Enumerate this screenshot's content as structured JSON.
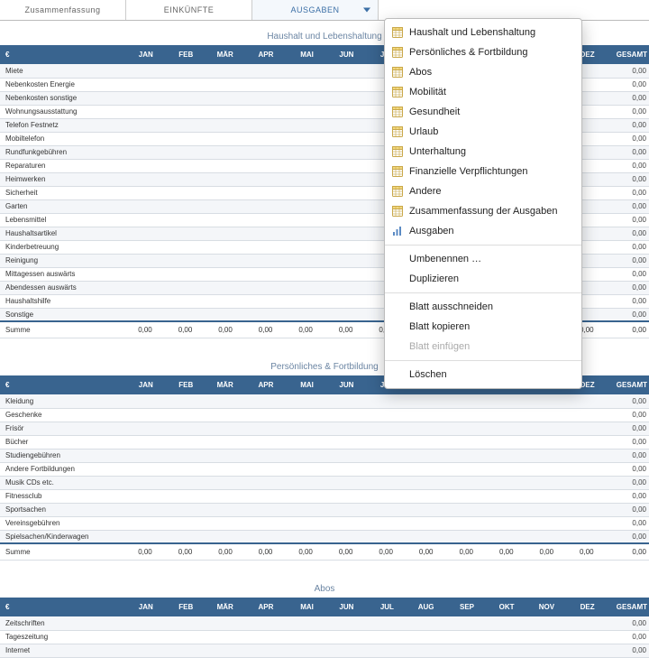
{
  "colors": {
    "header_bg": "#39648f",
    "header_fg": "#ffffff",
    "row_alt_bg": "#f4f6f9",
    "row_bg": "#ffffff",
    "border": "#d8dde3",
    "accent": "#3b6fa6",
    "title_fg": "#6b85a3"
  },
  "tabs": {
    "summary": "Zusammenfassung",
    "income": "EINKÜNFTE",
    "expenses": "AUSGABEN"
  },
  "currency_symbol": "€",
  "months": [
    "JAN",
    "FEB",
    "MÄR",
    "APR",
    "MAI",
    "JUN",
    "JUL",
    "AUG",
    "SEP",
    "OKT",
    "NOV",
    "DEZ"
  ],
  "total_label": "GESAMT",
  "sum_label": "Summe",
  "zero": "0,00",
  "sections": [
    {
      "title": "Haushalt und Lebenshaltung",
      "rows": [
        "Miete",
        "Nebenkosten Energie",
        "Nebenkosten sonstige",
        "Wohnungsausstattung",
        "Telefon Festnetz",
        "Mobiltelefon",
        "Rundfunkgebühren",
        "Reparaturen",
        "Heimwerken",
        "Sicherheit",
        "Garten",
        "Lebensmittel",
        "Haushaltsartikel",
        "Kinderbetreuung",
        "Reinigung",
        "Mittagessen auswärts",
        "Abendessen auswärts",
        "Haushaltshilfe",
        "Sonstige"
      ]
    },
    {
      "title": "Persönliches & Fortbildung",
      "rows": [
        "Kleidung",
        "Geschenke",
        "Frisör",
        "Bücher",
        "Studiengebühren",
        "Andere Fortbildungen",
        "Musik CDs etc.",
        "Fitnessclub",
        "Sportsachen",
        "Vereinsgebühren",
        "Spielsachen/Kinderwagen"
      ]
    },
    {
      "title": "Abos",
      "rows": [
        "Zeitschriften",
        "Tageszeitung",
        "Internet"
      ]
    }
  ],
  "menu": {
    "sheet_items": [
      "Haushalt und Lebenshaltung",
      "Persönliches & Fortbildung",
      "Abos",
      "Mobilität",
      "Gesundheit",
      "Urlaub",
      "Unterhaltung",
      "Finanzielle Verpflichtungen",
      "Andere",
      "Zusammenfassung der Ausgaben"
    ],
    "chart_item": "Ausgaben",
    "rename": "Umbenennen …",
    "duplicate": "Duplizieren",
    "cut": "Blatt ausschneiden",
    "copy": "Blatt kopieren",
    "paste": "Blatt einfügen",
    "delete": "Löschen"
  }
}
